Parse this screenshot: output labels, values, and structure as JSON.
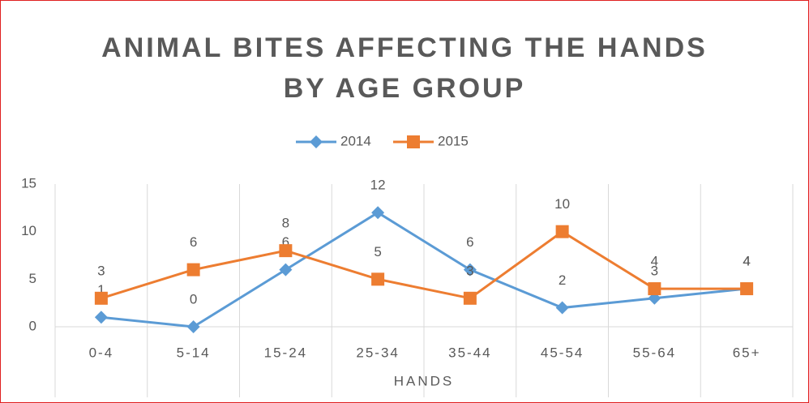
{
  "chart_data": {
    "type": "line",
    "title": "ANIMAL BITES AFFECTING THE HANDS BY AGE GROUP",
    "categories": [
      "0-4",
      "5-14",
      "15-24",
      "25-34",
      "35-44",
      "45-54",
      "55-64",
      "65+"
    ],
    "series": [
      {
        "name": "2014",
        "color": "#5b9bd5",
        "marker": "diamond",
        "values": [
          1,
          0,
          6,
          12,
          6,
          2,
          3,
          4
        ]
      },
      {
        "name": "2015",
        "color": "#ed7d31",
        "marker": "square",
        "values": [
          3,
          6,
          8,
          5,
          3,
          10,
          4,
          4
        ]
      }
    ],
    "xlabel": "HANDS",
    "ylim": [
      0,
      15
    ],
    "yticks": [
      0,
      5,
      10,
      15
    ],
    "grid": "vertical",
    "legend": "top",
    "data_labels": true
  }
}
